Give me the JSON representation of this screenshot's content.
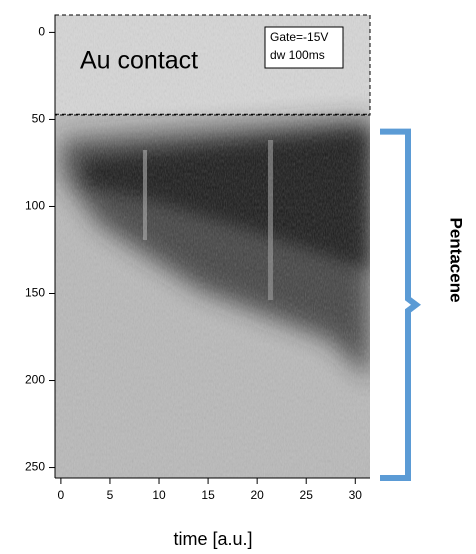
{
  "chart_data": {
    "type": "heatmap",
    "xlabel": "time [a.u.]",
    "xlim": [
      -0.6,
      31.5
    ],
    "xticks": [
      0,
      5,
      10,
      15,
      20,
      25,
      30
    ],
    "ylim": [
      -10,
      256
    ],
    "y_inverted": true,
    "yticks": [
      0,
      50,
      100,
      150,
      200,
      250
    ],
    "annotations": [
      "Au contact",
      "Pentacene"
    ],
    "legend_text": [
      "Gate=-15V",
      "dw 100ms"
    ],
    "contact_boundary": 47,
    "bracket_range": [
      57,
      256
    ],
    "bracket_color": "#5b9bd5"
  }
}
